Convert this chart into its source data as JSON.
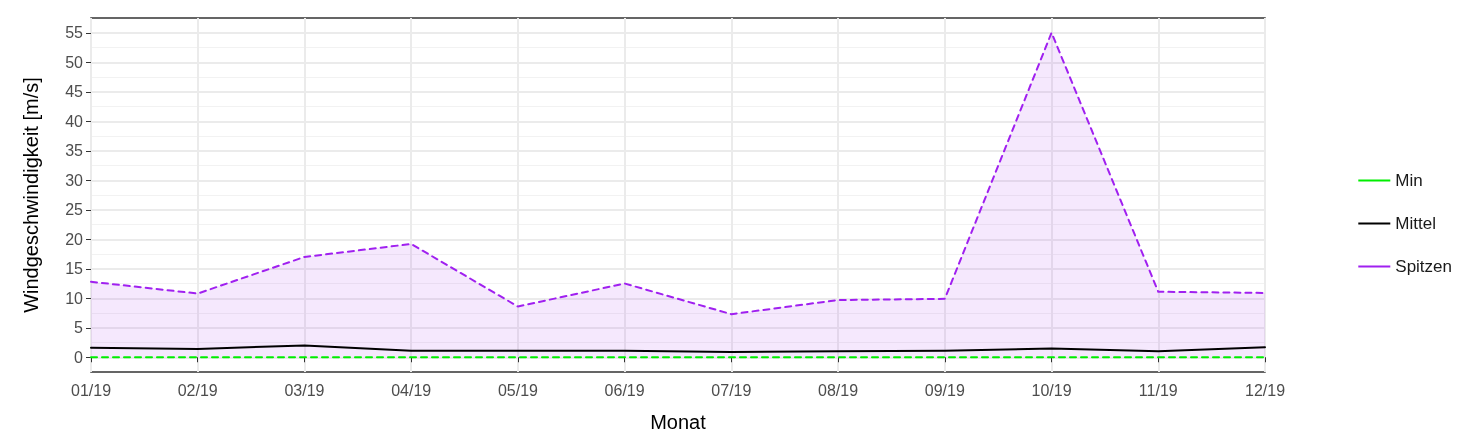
{
  "chart_data": {
    "type": "line",
    "xlabel": "Monat",
    "ylabel": "Windgeschwindigkeit [m/s]",
    "categories": [
      "01/19",
      "02/19",
      "03/19",
      "04/19",
      "05/19",
      "06/19",
      "07/19",
      "08/19",
      "09/19",
      "10/19",
      "11/19",
      "12/19"
    ],
    "series": [
      {
        "name": "Min",
        "color": "#00ee00",
        "line_style": "dashed",
        "values": [
          0,
          0,
          0,
          0,
          0,
          0,
          0,
          0,
          0,
          0,
          0,
          0
        ]
      },
      {
        "name": "Mittel",
        "color": "#000000",
        "line_style": "solid",
        "values": [
          1.6,
          1.4,
          2.0,
          1.1,
          1.1,
          1.1,
          0.9,
          1.0,
          1.1,
          1.5,
          1.0,
          1.7
        ]
      },
      {
        "name": "Spitzen",
        "type": "area",
        "color": "#a020f0",
        "line_style": "dashed",
        "values": [
          12.8,
          10.8,
          17.0,
          19.2,
          8.6,
          12.5,
          7.3,
          9.7,
          9.9,
          55.0,
          11.1,
          10.9
        ]
      }
    ],
    "ylim": [
      -2.5,
      57.5
    ],
    "yticks": [
      0,
      5,
      10,
      15,
      20,
      25,
      30,
      35,
      40,
      45,
      50,
      55
    ],
    "grid": true,
    "legend": "right",
    "marker": "none"
  }
}
